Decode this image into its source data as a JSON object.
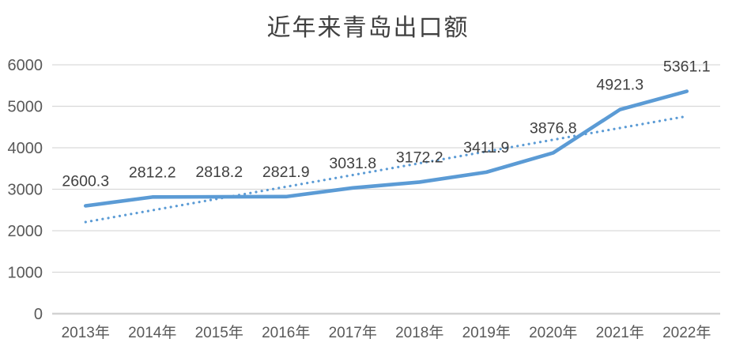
{
  "chart_data": {
    "type": "line",
    "title": "近年来青岛出口额",
    "categories": [
      "2013年",
      "2014年",
      "2015年",
      "2016年",
      "2017年",
      "2018年",
      "2019年",
      "2020年",
      "2021年",
      "2022年"
    ],
    "series": [
      {
        "name": "出口额",
        "style": "solid",
        "color": "#5b9bd5",
        "values": [
          2600.3,
          2812.2,
          2818.2,
          2821.9,
          3031.8,
          3172.2,
          3411.9,
          3876.8,
          4921.3,
          5361.1
        ],
        "data_labels": [
          "2600.3",
          "2812.2",
          "2818.2",
          "2821.9",
          "3031.8",
          "3172.2",
          "3411.9",
          "3876.8",
          "4921.3",
          "5361.1"
        ]
      }
    ],
    "trendline": {
      "type": "linear",
      "style": "dotted",
      "color": "#5b9bd5",
      "start_value": 2210,
      "end_value": 4760
    },
    "xlabel": "",
    "ylabel": "",
    "ylim": [
      0,
      6000
    ],
    "yticks": [
      0,
      1000,
      2000,
      3000,
      4000,
      5000,
      6000
    ],
    "ytick_labels": [
      "0",
      "1000",
      "2000",
      "3000",
      "4000",
      "5000",
      "6000"
    ],
    "grid": true,
    "legend_position": "none"
  },
  "colors": {
    "background": "#ffffff",
    "gridline": "#d9d9d9",
    "axis_line": "#d2d2d2",
    "tick_label": "#595959",
    "data_label": "#404040",
    "title": "#404040",
    "series_line": "#5b9bd5",
    "trend_line": "#5b9bd5"
  }
}
